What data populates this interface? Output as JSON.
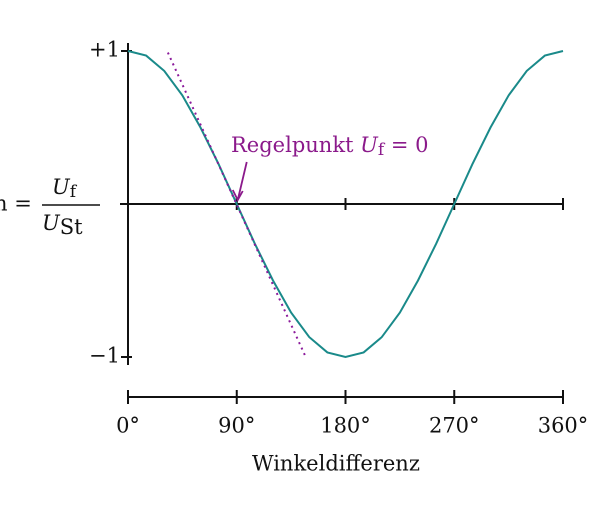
{
  "chart_data": {
    "type": "line",
    "xlabel": "Winkeldifferenz",
    "ylabel": {
      "prefix": "n =",
      "numerator": [
        "U",
        "f"
      ],
      "denominator": [
        "U",
        "St"
      ]
    },
    "annotation": {
      "text": "Regelpunkt ",
      "symbol": "U",
      "subscript": "f",
      "suffix": " = 0",
      "color": "#8b1a8b",
      "x": 90,
      "y": 0
    },
    "xlim": [
      0,
      360
    ],
    "ylim": [
      -1,
      1
    ],
    "xticks": [
      {
        "value": 0,
        "label": "0°"
      },
      {
        "value": 90,
        "label": "90°"
      },
      {
        "value": 180,
        "label": "180°"
      },
      {
        "value": 270,
        "label": "270°"
      },
      {
        "value": 360,
        "label": "360°"
      }
    ],
    "yticks": [
      {
        "value": -1,
        "label": "−1"
      },
      {
        "value": 1,
        "label": "+1"
      }
    ],
    "series": [
      {
        "color": "#1a8a8a",
        "style": "solid",
        "x": [
          0,
          15,
          30,
          45,
          60,
          75,
          90,
          105,
          120,
          135,
          150,
          165,
          180,
          195,
          210,
          225,
          240,
          255,
          270,
          285,
          300,
          315,
          330,
          345,
          360
        ],
        "values": [
          1,
          0.97,
          0.87,
          0.71,
          0.5,
          0.26,
          0,
          -0.26,
          -0.5,
          -0.71,
          -0.87,
          -0.97,
          -1,
          -0.97,
          -0.87,
          -0.71,
          -0.5,
          -0.26,
          0,
          0.26,
          0.5,
          0.71,
          0.87,
          0.97,
          1
        ]
      },
      {
        "color": "#8b1a9b",
        "style": "dotted",
        "x": [
          33,
          146.5
        ],
        "values": [
          0.99,
          -0.99
        ]
      }
    ]
  }
}
